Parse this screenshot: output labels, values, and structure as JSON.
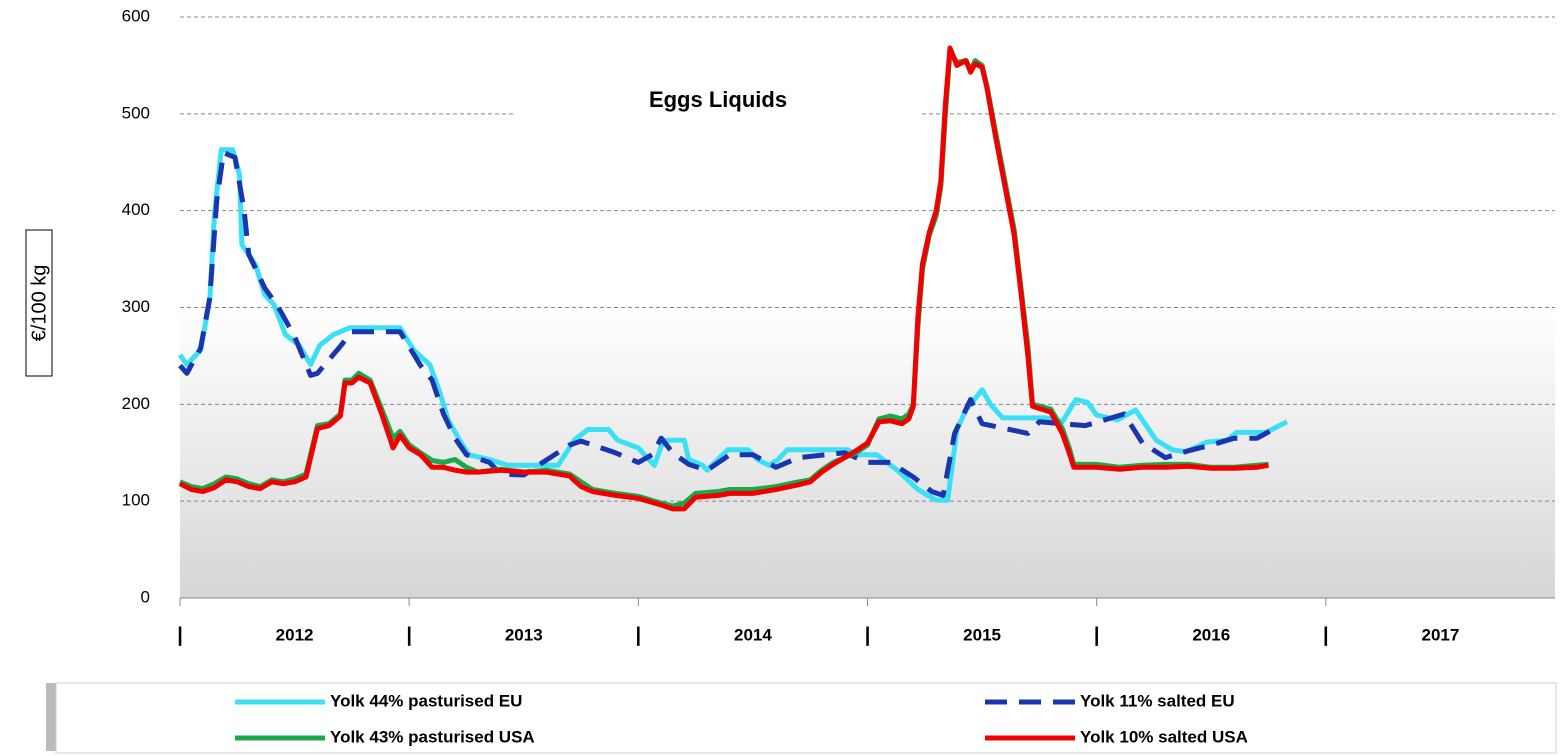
{
  "chart_data": {
    "type": "line",
    "title": "Eggs Liquids",
    "y_label": "€/100 kg",
    "xlim": [
      2012,
      2018
    ],
    "ylim": [
      0,
      600
    ],
    "yticks": [
      0,
      100,
      200,
      300,
      400,
      500,
      600
    ],
    "grid": true,
    "xticks": [
      {
        "value": 2012,
        "label": "|"
      },
      {
        "value": 2013,
        "label": "|"
      },
      {
        "value": 2014,
        "label": "|"
      },
      {
        "value": 2015,
        "label": "|"
      },
      {
        "value": 2016,
        "label": "|"
      },
      {
        "value": 2017,
        "label": "|"
      }
    ],
    "year_labels": [
      "2012",
      "2013",
      "2014",
      "2015",
      "2016",
      "2017"
    ],
    "series": [
      {
        "name": "Yolk 44% pasturised EU",
        "color": "#3ce0f4",
        "dashed": false,
        "x": [
          2012.0,
          2012.03,
          2012.09,
          2012.13,
          2012.15,
          2012.18,
          2012.23,
          2012.26,
          2012.27,
          2012.33,
          2012.37,
          2012.41,
          2012.46,
          2012.52,
          2012.57,
          2012.61,
          2012.67,
          2012.74,
          2012.96,
          2013.02,
          2013.09,
          2013.13,
          2013.17,
          2013.22,
          2013.26,
          2013.35,
          2013.43,
          2013.65,
          2013.72,
          2013.78,
          2013.87,
          2013.91,
          2014.0,
          2014.07,
          2014.11,
          2014.2,
          2014.22,
          2014.28,
          2014.3,
          2014.39,
          2014.48,
          2014.52,
          2014.57,
          2014.61,
          2014.65,
          2014.91,
          2014.96,
          2015.04,
          2015.13,
          2015.22,
          2015.3,
          2015.35,
          2015.39,
          2015.43,
          2015.5,
          2015.54,
          2015.59,
          2015.78,
          2015.85,
          2015.91,
          2015.96,
          2016.0,
          2016.09,
          2016.17,
          2016.26,
          2016.33,
          2016.39,
          2016.48,
          2016.57,
          2016.61,
          2016.74,
          2016.83
        ],
        "values": [
          251,
          241,
          256,
          308,
          396,
          463,
          463,
          437,
          365,
          344,
          313,
          303,
          272,
          261,
          241,
          261,
          272,
          279,
          279,
          256,
          241,
          215,
          184,
          163,
          148,
          143,
          137,
          137,
          163,
          174,
          174,
          163,
          155,
          137,
          163,
          163,
          143,
          137,
          132,
          153,
          153,
          143,
          137,
          143,
          153,
          153,
          148,
          148,
          132,
          112,
          101,
          101,
          174,
          194,
          215,
          199,
          186,
          186,
          182,
          205,
          202,
          189,
          184,
          194,
          163,
          153,
          151,
          161,
          163,
          171,
          171,
          182
        ]
      },
      {
        "name": "Yolk 11% salted EU",
        "color": "#1a35b0",
        "dashed": true,
        "x": [
          2012.0,
          2012.03,
          2012.09,
          2012.13,
          2012.16,
          2012.19,
          2012.24,
          2012.28,
          2012.3,
          2012.37,
          2012.43,
          2012.5,
          2012.57,
          2012.6,
          2012.7,
          2012.75,
          2012.96,
          2013.05,
          2013.1,
          2013.15,
          2013.2,
          2013.25,
          2013.35,
          2013.4,
          2013.5,
          2013.55,
          2013.7,
          2013.75,
          2013.9,
          2014.0,
          2014.06,
          2014.1,
          2014.15,
          2014.22,
          2014.3,
          2014.4,
          2014.5,
          2014.6,
          2014.7,
          2014.9,
          2015.0,
          2015.1,
          2015.2,
          2015.28,
          2015.33,
          2015.38,
          2015.45,
          2015.5,
          2015.6,
          2015.7,
          2015.75,
          2015.85,
          2015.95,
          2016.05,
          2016.12,
          2016.2,
          2016.3,
          2016.4,
          2016.5,
          2016.6,
          2016.7,
          2016.8
        ],
        "values": [
          240,
          232,
          258,
          310,
          410,
          460,
          455,
          400,
          355,
          320,
          300,
          270,
          230,
          232,
          260,
          275,
          275,
          240,
          225,
          190,
          165,
          148,
          140,
          128,
          127,
          135,
          158,
          162,
          150,
          140,
          148,
          165,
          150,
          138,
          132,
          148,
          148,
          135,
          145,
          150,
          140,
          140,
          125,
          110,
          106,
          170,
          205,
          180,
          175,
          170,
          182,
          180,
          178,
          185,
          190,
          160,
          145,
          152,
          158,
          165,
          165,
          178
        ]
      },
      {
        "name": "Yolk 43% pasturised USA",
        "color": "#1aa84a",
        "dashed": false,
        "x": [
          2012.0,
          2012.05,
          2012.1,
          2012.15,
          2012.2,
          2012.25,
          2012.3,
          2012.35,
          2012.4,
          2012.45,
          2012.5,
          2012.55,
          2012.6,
          2012.65,
          2012.7,
          2012.72,
          2012.75,
          2012.78,
          2012.83,
          2012.88,
          2012.93,
          2012.96,
          2013.0,
          2013.05,
          2013.1,
          2013.15,
          2013.2,
          2013.25,
          2013.3,
          2013.4,
          2013.5,
          2013.6,
          2013.7,
          2013.75,
          2013.8,
          2013.9,
          2014.0,
          2014.1,
          2014.15,
          2014.2,
          2014.25,
          2014.35,
          2014.4,
          2014.5,
          2014.6,
          2014.7,
          2014.75,
          2014.8,
          2014.85,
          2014.9,
          2014.95,
          2015.0,
          2015.05,
          2015.1,
          2015.15,
          2015.18,
          2015.2,
          2015.22,
          2015.24,
          2015.27,
          2015.3,
          2015.32,
          2015.34,
          2015.36,
          2015.39,
          2015.43,
          2015.45,
          2015.47,
          2015.5,
          2015.52,
          2015.56,
          2015.6,
          2015.64,
          2015.67,
          2015.7,
          2015.72,
          2015.8,
          2015.85,
          2015.88,
          2015.9,
          2016.0,
          2016.1,
          2016.2,
          2016.3,
          2016.4,
          2016.5,
          2016.6,
          2016.7,
          2016.75
        ],
        "values": [
          120,
          115,
          113,
          118,
          125,
          123,
          118,
          115,
          122,
          120,
          123,
          128,
          178,
          180,
          190,
          225,
          225,
          232,
          225,
          195,
          165,
          172,
          158,
          150,
          142,
          140,
          143,
          135,
          130,
          133,
          130,
          132,
          128,
          120,
          112,
          108,
          105,
          98,
          95,
          98,
          108,
          110,
          112,
          112,
          115,
          120,
          122,
          132,
          140,
          145,
          150,
          158,
          185,
          188,
          185,
          190,
          200,
          280,
          340,
          375,
          395,
          425,
          500,
          565,
          553,
          555,
          545,
          555,
          550,
          530,
          480,
          430,
          380,
          320,
          260,
          200,
          195,
          175,
          155,
          138,
          138,
          135,
          137,
          138,
          138,
          135,
          135,
          137,
          138
        ]
      },
      {
        "name": "Yolk 10% salted USA",
        "color": "#f00000",
        "dashed": false,
        "x": [
          2012.0,
          2012.05,
          2012.1,
          2012.15,
          2012.2,
          2012.25,
          2012.3,
          2012.35,
          2012.4,
          2012.45,
          2012.5,
          2012.55,
          2012.6,
          2012.65,
          2012.7,
          2012.72,
          2012.75,
          2012.78,
          2012.83,
          2012.88,
          2012.93,
          2012.96,
          2013.0,
          2013.05,
          2013.1,
          2013.15,
          2013.2,
          2013.25,
          2013.3,
          2013.4,
          2013.5,
          2013.6,
          2013.7,
          2013.75,
          2013.8,
          2013.9,
          2014.0,
          2014.1,
          2014.15,
          2014.2,
          2014.25,
          2014.35,
          2014.4,
          2014.5,
          2014.6,
          2014.7,
          2014.75,
          2014.8,
          2014.85,
          2014.9,
          2014.95,
          2015.0,
          2015.05,
          2015.1,
          2015.15,
          2015.18,
          2015.2,
          2015.22,
          2015.24,
          2015.27,
          2015.3,
          2015.32,
          2015.34,
          2015.36,
          2015.39,
          2015.43,
          2015.45,
          2015.47,
          2015.5,
          2015.52,
          2015.56,
          2015.6,
          2015.64,
          2015.67,
          2015.7,
          2015.72,
          2015.8,
          2015.85,
          2015.88,
          2015.9,
          2016.0,
          2016.1,
          2016.2,
          2016.3,
          2016.4,
          2016.5,
          2016.6,
          2016.7,
          2016.75
        ],
        "values": [
          118,
          112,
          110,
          114,
          122,
          120,
          115,
          113,
          120,
          118,
          120,
          125,
          175,
          178,
          188,
          222,
          222,
          228,
          222,
          190,
          155,
          168,
          155,
          148,
          135,
          135,
          132,
          130,
          130,
          132,
          130,
          130,
          126,
          115,
          110,
          106,
          103,
          96,
          92,
          92,
          104,
          106,
          108,
          108,
          112,
          117,
          120,
          130,
          138,
          145,
          152,
          160,
          182,
          183,
          180,
          185,
          198,
          290,
          345,
          378,
          400,
          430,
          510,
          568,
          550,
          555,
          543,
          552,
          548,
          528,
          475,
          425,
          375,
          315,
          250,
          198,
          192,
          170,
          150,
          135,
          135,
          133,
          135,
          135,
          136,
          134,
          134,
          135,
          137
        ]
      }
    ]
  }
}
